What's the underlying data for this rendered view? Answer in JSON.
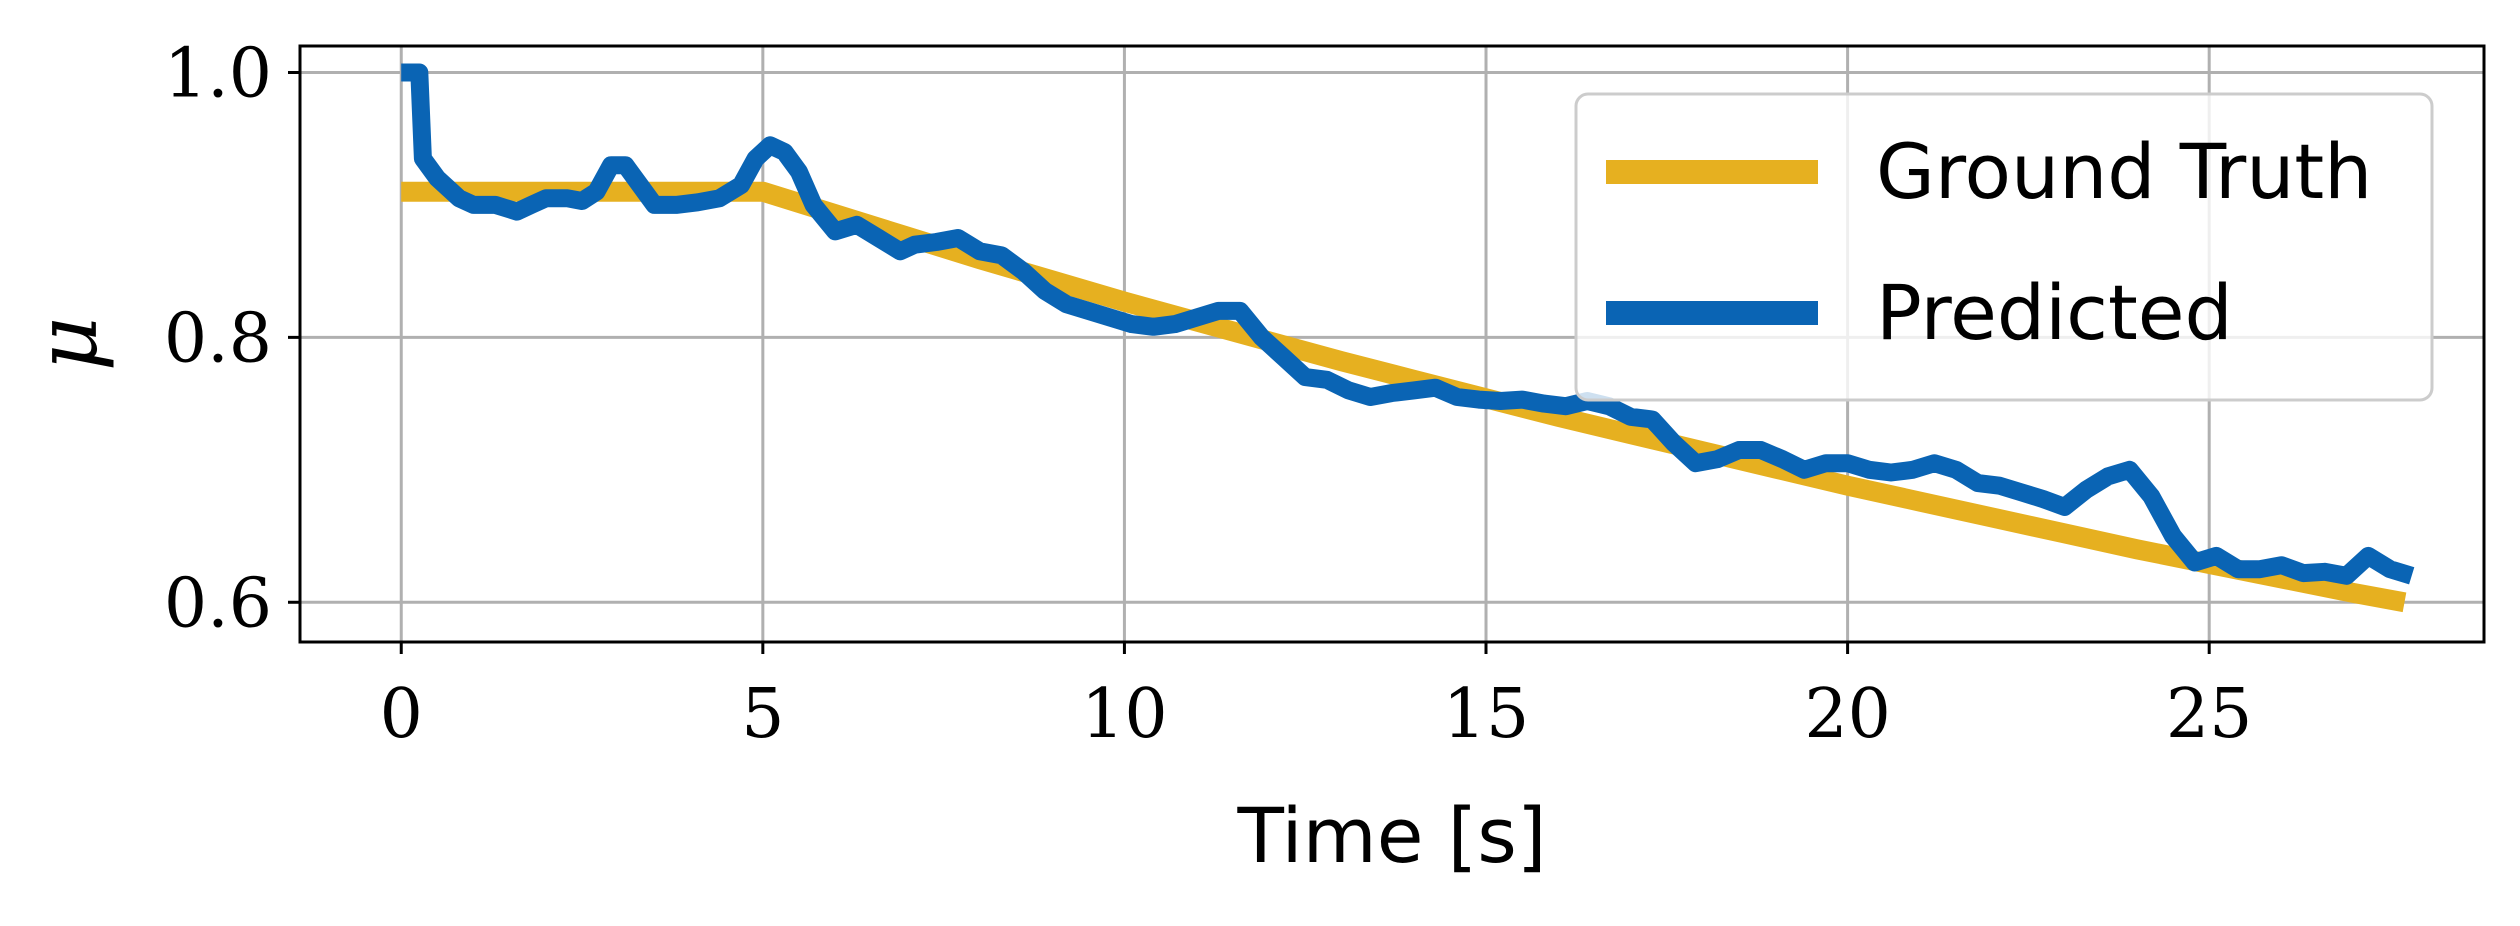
{
  "chart_data": {
    "type": "line",
    "xlabel": "Time [s]",
    "ylabel": "μ",
    "xlim": [
      -1.4,
      28.8
    ],
    "ylim": [
      0.57,
      1.02
    ],
    "xticks": [
      0,
      5,
      10,
      15,
      20,
      25
    ],
    "xtick_labels": [
      "0",
      "5",
      "10",
      "15",
      "20",
      "25"
    ],
    "yticks": [
      0.6,
      0.8,
      1.0
    ],
    "ytick_labels": [
      "0.6",
      "0.8",
      "1.0"
    ],
    "grid": true,
    "legend_position": "top-right",
    "series": [
      {
        "name": "Ground Truth",
        "color": "#E6B020",
        "x": [
          0,
          1,
          2,
          3,
          4,
          5,
          6,
          7,
          8,
          9,
          10,
          11,
          12,
          13,
          14,
          15,
          16,
          17,
          18,
          19,
          20,
          21,
          22,
          23,
          24,
          25,
          26,
          27,
          27.7
        ],
        "y": [
          0.91,
          0.91,
          0.91,
          0.91,
          0.91,
          0.91,
          0.893,
          0.876,
          0.859,
          0.843,
          0.827,
          0.812,
          0.797,
          0.782,
          0.768,
          0.754,
          0.74,
          0.727,
          0.714,
          0.701,
          0.688,
          0.676,
          0.664,
          0.652,
          0.64,
          0.629,
          0.618,
          0.607,
          0.6
        ]
      },
      {
        "name": "Predicted",
        "color": "#0A64B4",
        "x": [
          0,
          0.25,
          0.3,
          0.5,
          0.8,
          1.0,
          1.3,
          1.6,
          1.8,
          2.0,
          2.3,
          2.5,
          2.7,
          2.9,
          3.1,
          3.3,
          3.5,
          3.8,
          4.1,
          4.4,
          4.7,
          4.9,
          5.1,
          5.3,
          5.5,
          5.7,
          6.0,
          6.3,
          6.6,
          6.9,
          7.1,
          7.4,
          7.7,
          8.0,
          8.3,
          8.6,
          8.9,
          9.2,
          9.5,
          9.8,
          10.1,
          10.4,
          10.7,
          11.0,
          11.3,
          11.6,
          11.9,
          12.2,
          12.5,
          12.8,
          13.1,
          13.4,
          13.7,
          14.0,
          14.3,
          14.6,
          14.9,
          15.2,
          15.5,
          15.8,
          16.1,
          16.4,
          16.7,
          17.0,
          17.3,
          17.6,
          17.9,
          18.2,
          18.5,
          18.8,
          19.1,
          19.4,
          19.7,
          20.0,
          20.3,
          20.6,
          20.9,
          21.2,
          21.5,
          21.8,
          22.1,
          22.4,
          22.7,
          23.0,
          23.3,
          23.6,
          23.9,
          24.2,
          24.5,
          24.8,
          25.1,
          25.4,
          25.7,
          26.0,
          26.3,
          26.6,
          26.9,
          27.2,
          27.5,
          27.8
        ],
        "y": [
          1.0,
          1.0,
          0.935,
          0.92,
          0.905,
          0.9,
          0.9,
          0.895,
          0.9,
          0.905,
          0.905,
          0.903,
          0.91,
          0.93,
          0.93,
          0.915,
          0.9,
          0.9,
          0.902,
          0.905,
          0.915,
          0.935,
          0.945,
          0.94,
          0.925,
          0.9,
          0.88,
          0.885,
          0.875,
          0.865,
          0.87,
          0.872,
          0.875,
          0.865,
          0.862,
          0.85,
          0.835,
          0.825,
          0.82,
          0.815,
          0.81,
          0.808,
          0.81,
          0.815,
          0.82,
          0.82,
          0.8,
          0.785,
          0.77,
          0.768,
          0.76,
          0.755,
          0.758,
          0.76,
          0.762,
          0.755,
          0.753,
          0.752,
          0.753,
          0.75,
          0.748,
          0.752,
          0.748,
          0.74,
          0.738,
          0.72,
          0.705,
          0.708,
          0.715,
          0.715,
          0.708,
          0.7,
          0.705,
          0.705,
          0.7,
          0.698,
          0.7,
          0.705,
          0.7,
          0.69,
          0.688,
          0.683,
          0.678,
          0.672,
          0.685,
          0.695,
          0.7,
          0.68,
          0.65,
          0.63,
          0.635,
          0.625,
          0.625,
          0.628,
          0.622,
          0.623,
          0.62,
          0.635,
          0.625,
          0.62
        ]
      }
    ]
  }
}
